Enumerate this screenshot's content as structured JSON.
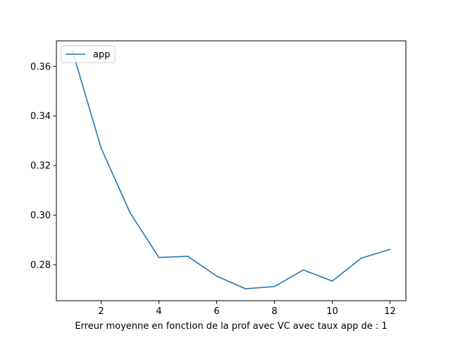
{
  "chart_data": {
    "type": "line",
    "title": "",
    "xlabel": "Erreur moyenne en fonction de la prof avec VC avec taux app de : 1",
    "ylabel": "",
    "x": [
      1,
      2,
      3,
      4,
      5,
      6,
      7,
      8,
      9,
      10,
      11,
      12
    ],
    "series": [
      {
        "name": "app",
        "color": "#1f77b4",
        "values": [
          0.3665,
          0.327,
          0.301,
          0.2829,
          0.2834,
          0.2754,
          0.2703,
          0.2712,
          0.2779,
          0.2734,
          0.2826,
          0.2862
        ]
      }
    ],
    "xlim": [
      0.45,
      12.55
    ],
    "ylim": [
      0.2655,
      0.3703
    ],
    "xticks": [
      2,
      4,
      6,
      8,
      10,
      12
    ],
    "yticks": [
      0.28,
      0.3,
      0.32,
      0.34,
      0.36
    ],
    "xtick_labels": [
      "2",
      "4",
      "6",
      "8",
      "10",
      "12"
    ],
    "ytick_labels": [
      "0.28",
      "0.30",
      "0.32",
      "0.34",
      "0.36"
    ],
    "grid": false,
    "legend_position": "top-left"
  }
}
